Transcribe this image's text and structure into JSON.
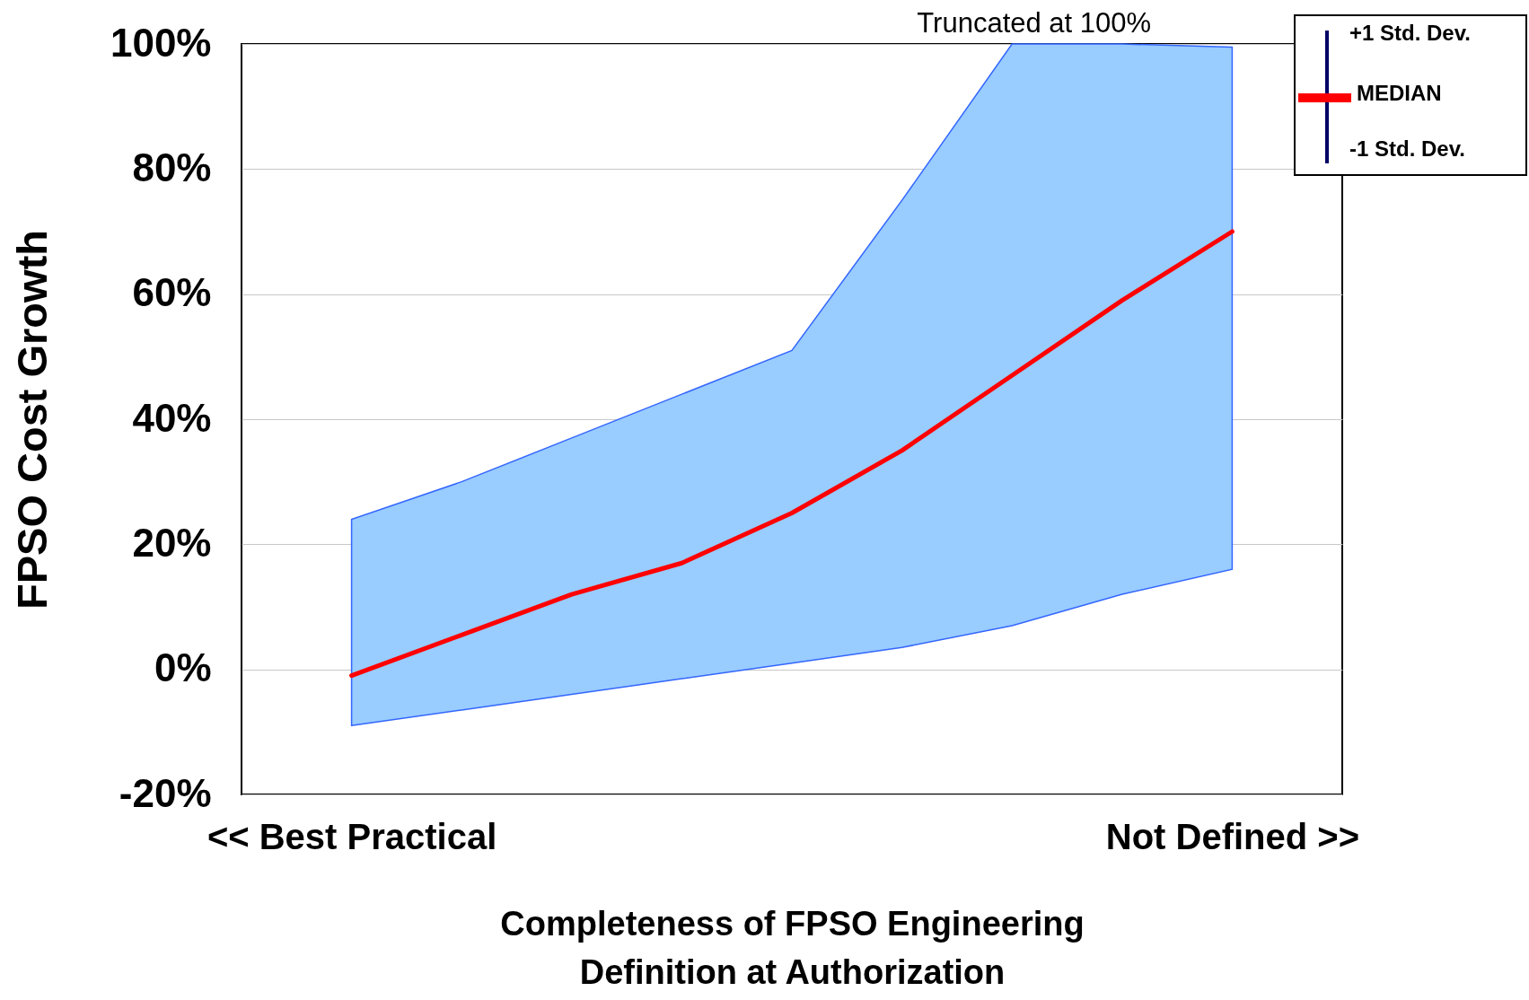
{
  "chart_data": {
    "type": "line",
    "xlabel": "Completeness of FPSO Engineering\nDefinition at Authorization",
    "ylabel": "FPSO Cost Growth",
    "categories": [
      "<< Best Practical",
      null,
      null,
      null,
      null,
      null,
      null,
      null,
      "Not Defined >>"
    ],
    "series": [
      {
        "name": "MEDIAN",
        "color": "#ff0000",
        "values": [
          -1,
          5.5,
          12,
          17,
          25,
          35,
          47,
          59,
          70
        ],
        "lower": [
          -9,
          -6.5,
          -4,
          -1.5,
          1,
          3.5,
          7,
          12,
          16
        ],
        "upper": [
          24,
          30,
          37,
          44,
          51,
          75,
          100,
          100,
          99.5
        ]
      }
    ],
    "ylim": [
      -20,
      100
    ],
    "yticks": [
      {
        "value": -20,
        "label": "-20%"
      },
      {
        "value": 0,
        "label": "0%"
      },
      {
        "value": 20,
        "label": "20%"
      },
      {
        "value": 40,
        "label": "40%"
      },
      {
        "value": 60,
        "label": "60%"
      },
      {
        "value": 80,
        "label": "80%"
      },
      {
        "value": 100,
        "label": "100%"
      }
    ],
    "grid": "y",
    "legend": "top right",
    "line_style": "solid",
    "annotations": [
      {
        "text": "Truncated at 100%",
        "y": 100
      },
      "+1 Std. Dev.",
      "-1 Std. Dev."
    ]
  }
}
